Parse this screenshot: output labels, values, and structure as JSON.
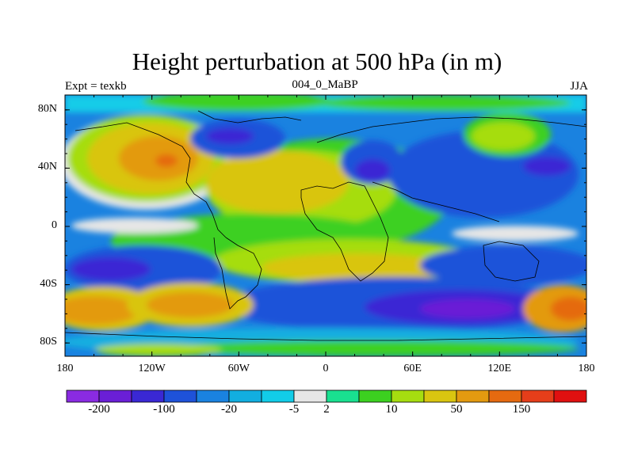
{
  "title": "Height perturbation at 500 hPa (in m)",
  "left_string": "Expt = texkb",
  "center_string": "004_0_MaBP",
  "right_string": "JJA",
  "lat_ticks": [
    {
      "value": 80,
      "label": "80N"
    },
    {
      "value": 40,
      "label": "40N"
    },
    {
      "value": 0,
      "label": "0"
    },
    {
      "value": -40,
      "label": "40S"
    },
    {
      "value": -80,
      "label": "80S"
    }
  ],
  "lon_ticks": [
    {
      "value": -180,
      "label": "180"
    },
    {
      "value": -120,
      "label": "120W"
    },
    {
      "value": -60,
      "label": "60W"
    },
    {
      "value": 0,
      "label": "0"
    },
    {
      "value": 60,
      "label": "60E"
    },
    {
      "value": 120,
      "label": "120E"
    },
    {
      "value": 180,
      "label": "180"
    }
  ],
  "colorbar": {
    "colors": [
      "#8a2be2",
      "#6a1fd6",
      "#3a28d4",
      "#1e52d9",
      "#1a82e0",
      "#12aee0",
      "#12cce8",
      "#e6e6e6",
      "#19e090",
      "#3cd020",
      "#a6dd10",
      "#d9c510",
      "#e39a10",
      "#e56a10",
      "#e53e1a",
      "#e01010"
    ],
    "labels": [
      {
        "after_box": 1,
        "text": "-200"
      },
      {
        "after_box": 3,
        "text": "-100"
      },
      {
        "after_box": 5,
        "text": "-20"
      },
      {
        "after_box": 7,
        "text": "-5"
      },
      {
        "after_box": 8,
        "text": "2"
      },
      {
        "after_box": 10,
        "text": "10"
      },
      {
        "after_box": 12,
        "text": "50"
      },
      {
        "after_box": 14,
        "text": "150"
      }
    ]
  }
}
